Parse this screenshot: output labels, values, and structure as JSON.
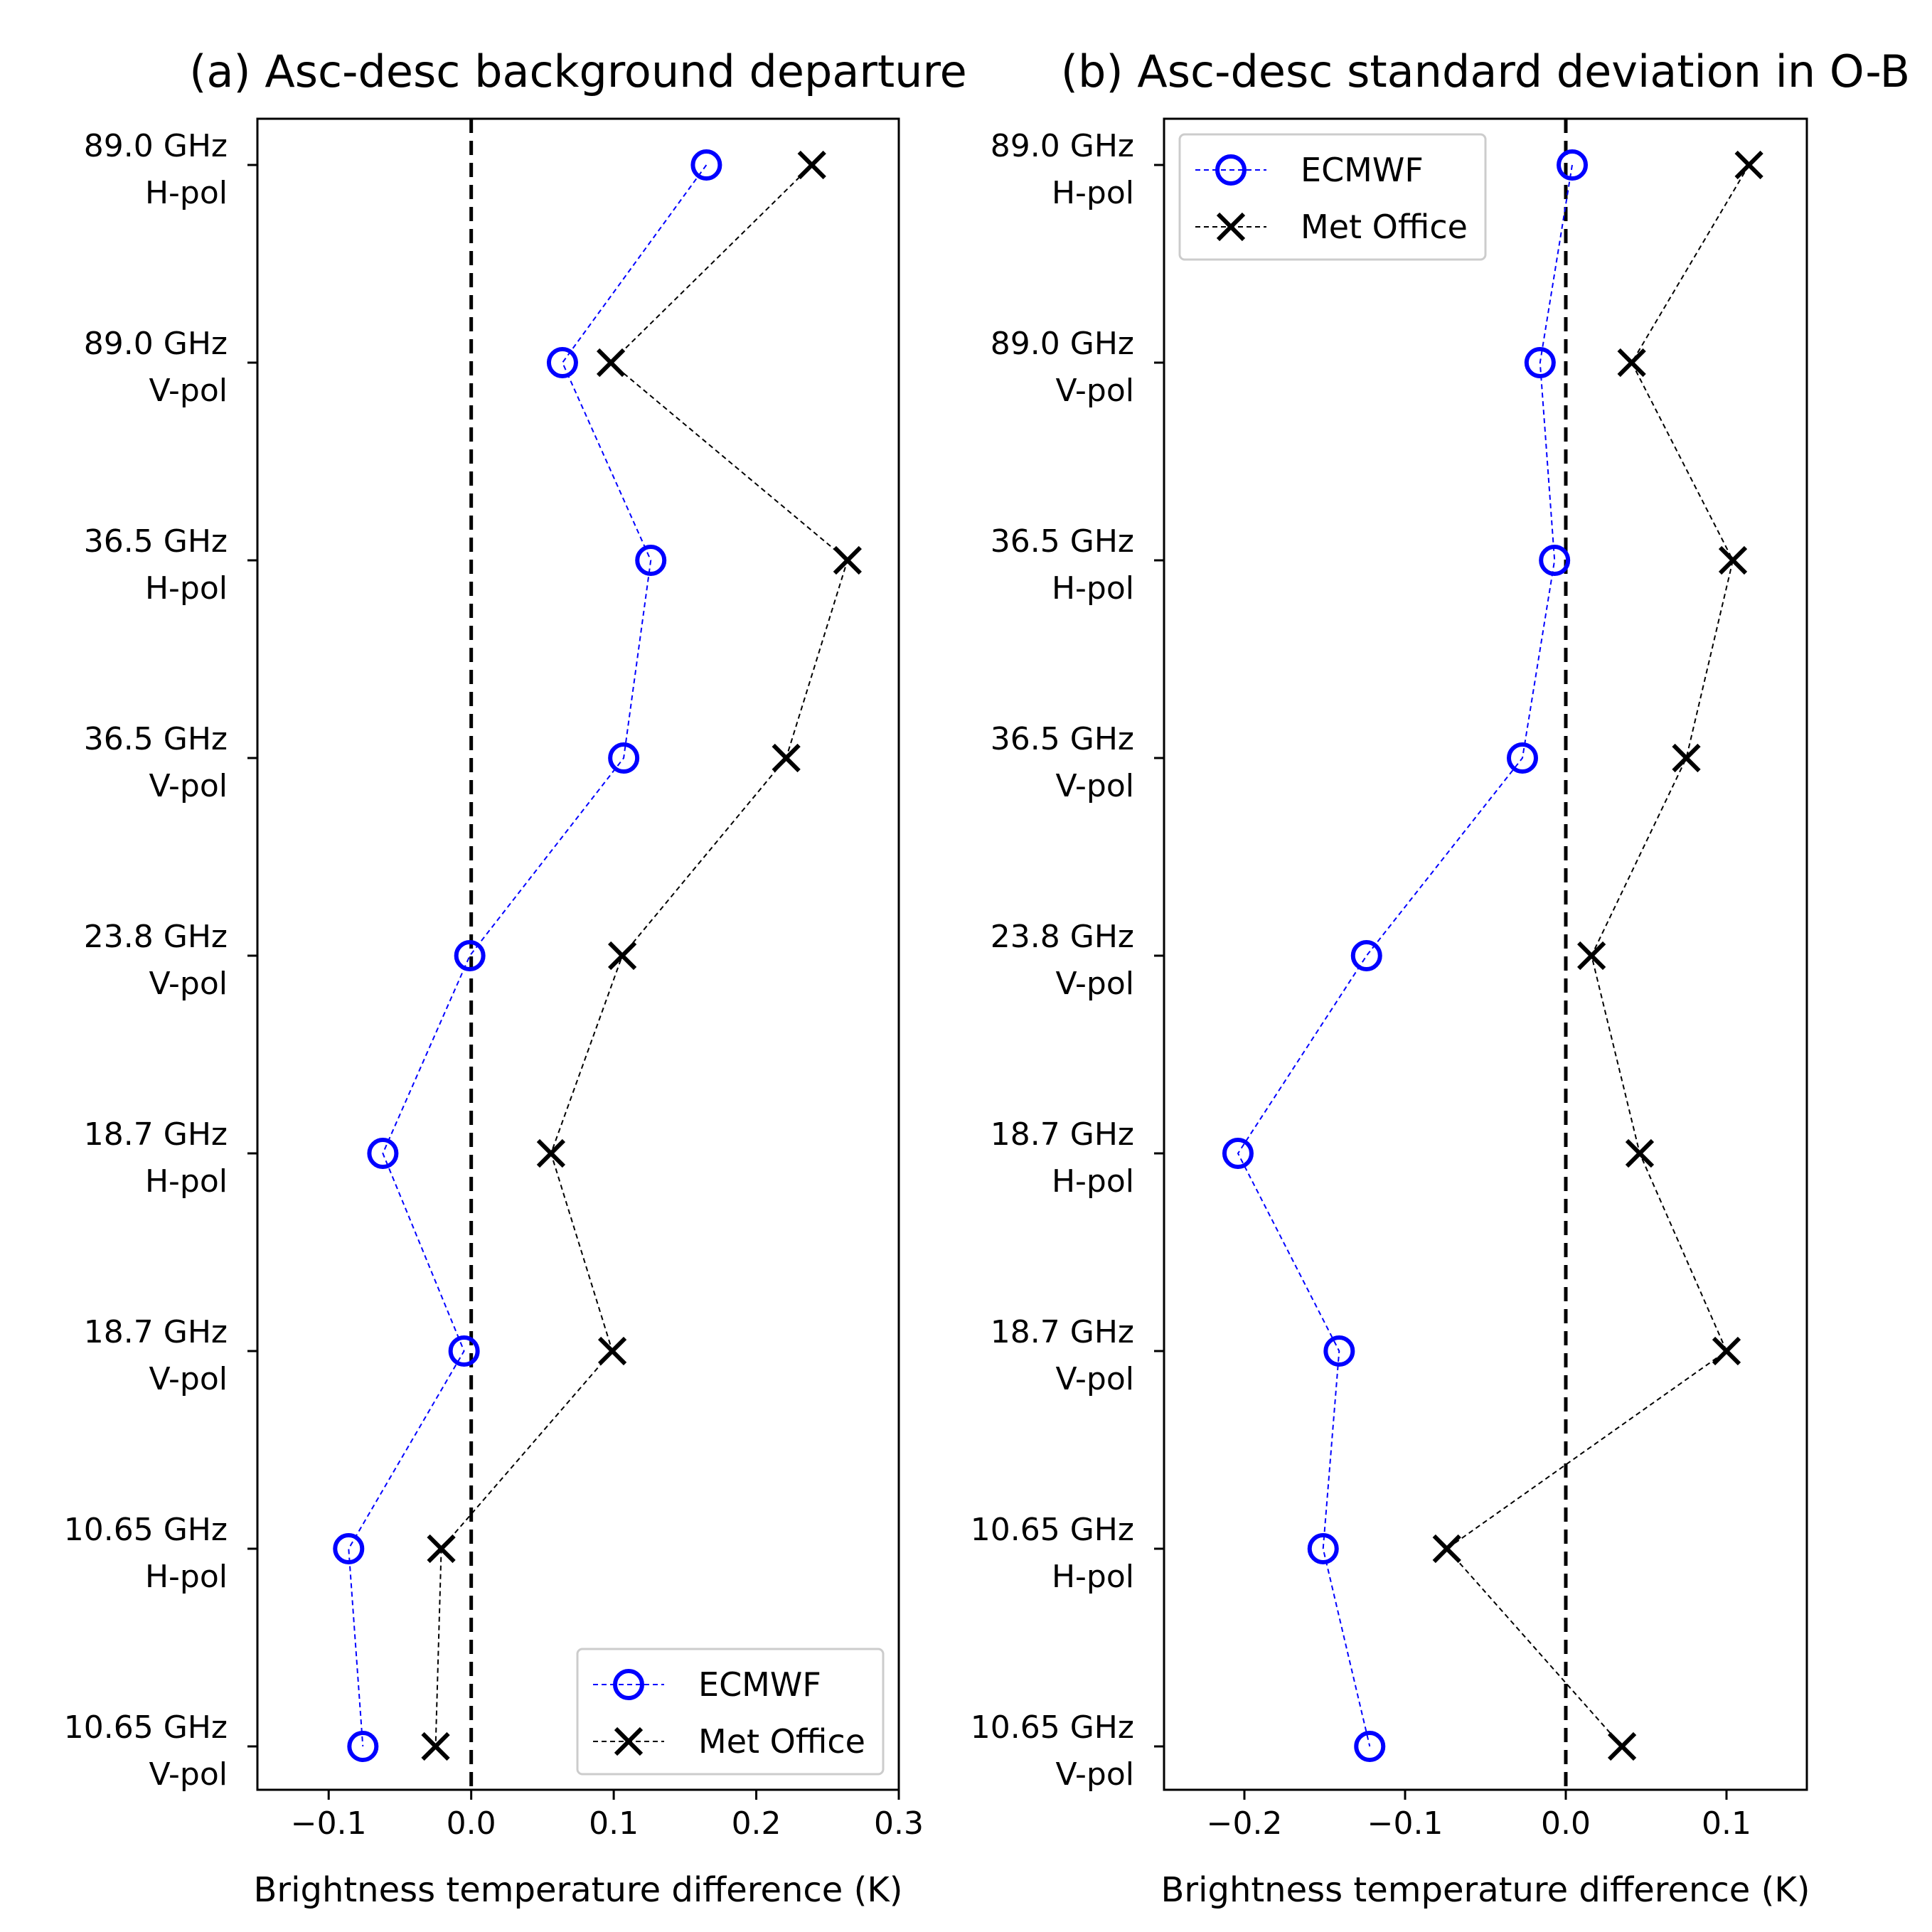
{
  "chart_data": [
    {
      "type": "line",
      "title": "(a) Asc-desc background departure",
      "xlabel": "Brightness temperature difference (K)",
      "ylabel": "",
      "xlim": [
        -0.15,
        0.3
      ],
      "xticks": [
        -0.1,
        0.0,
        0.1,
        0.2,
        0.3
      ],
      "xtick_labels": [
        "−0.1",
        "0.0",
        "0.1",
        "0.2",
        "0.3"
      ],
      "zero_line": true,
      "legend_position": "bottom-right",
      "channels": [
        [
          "89.0 GHz",
          "H-pol"
        ],
        [
          "89.0 GHz",
          "V-pol"
        ],
        [
          "36.5 GHz",
          "H-pol"
        ],
        [
          "36.5 GHz",
          "V-pol"
        ],
        [
          "23.8 GHz",
          "V-pol"
        ],
        [
          "18.7 GHz",
          "H-pol"
        ],
        [
          "18.7 GHz",
          "V-pol"
        ],
        [
          "10.65 GHz",
          "H-pol"
        ],
        [
          "10.65 GHz",
          "V-pol"
        ]
      ],
      "series": [
        {
          "name": "ECMWF",
          "color": "#0000ff",
          "marker": "circle",
          "values": [
            0.165,
            0.064,
            0.126,
            0.107,
            -0.001,
            -0.062,
            -0.005,
            -0.086,
            -0.076
          ]
        },
        {
          "name": "Met Office",
          "color": "#000000",
          "marker": "x",
          "values": [
            0.239,
            0.098,
            0.264,
            0.221,
            0.106,
            0.056,
            0.099,
            -0.021,
            -0.025
          ]
        }
      ]
    },
    {
      "type": "line",
      "title": "(b) Asc-desc standard deviation in O-B",
      "xlabel": "Brightness temperature difference (K)",
      "ylabel": "",
      "xlim": [
        -0.25,
        0.15
      ],
      "xticks": [
        -0.2,
        -0.1,
        0.0,
        0.1
      ],
      "xtick_labels": [
        "−0.2",
        "−0.1",
        "0.0",
        "0.1"
      ],
      "zero_line": true,
      "legend_position": "top-left",
      "channels": [
        [
          "89.0 GHz",
          "H-pol"
        ],
        [
          "89.0 GHz",
          "V-pol"
        ],
        [
          "36.5 GHz",
          "H-pol"
        ],
        [
          "36.5 GHz",
          "V-pol"
        ],
        [
          "23.8 GHz",
          "V-pol"
        ],
        [
          "18.7 GHz",
          "H-pol"
        ],
        [
          "18.7 GHz",
          "V-pol"
        ],
        [
          "10.65 GHz",
          "H-pol"
        ],
        [
          "10.65 GHz",
          "V-pol"
        ]
      ],
      "series": [
        {
          "name": "ECMWF",
          "color": "#0000ff",
          "marker": "circle",
          "values": [
            0.004,
            -0.016,
            -0.007,
            -0.027,
            -0.124,
            -0.204,
            -0.141,
            -0.151,
            -0.122
          ]
        },
        {
          "name": "Met Office",
          "color": "#000000",
          "marker": "x",
          "values": [
            0.114,
            0.041,
            0.104,
            0.075,
            0.016,
            0.046,
            0.1,
            -0.074,
            0.035
          ]
        }
      ]
    }
  ]
}
